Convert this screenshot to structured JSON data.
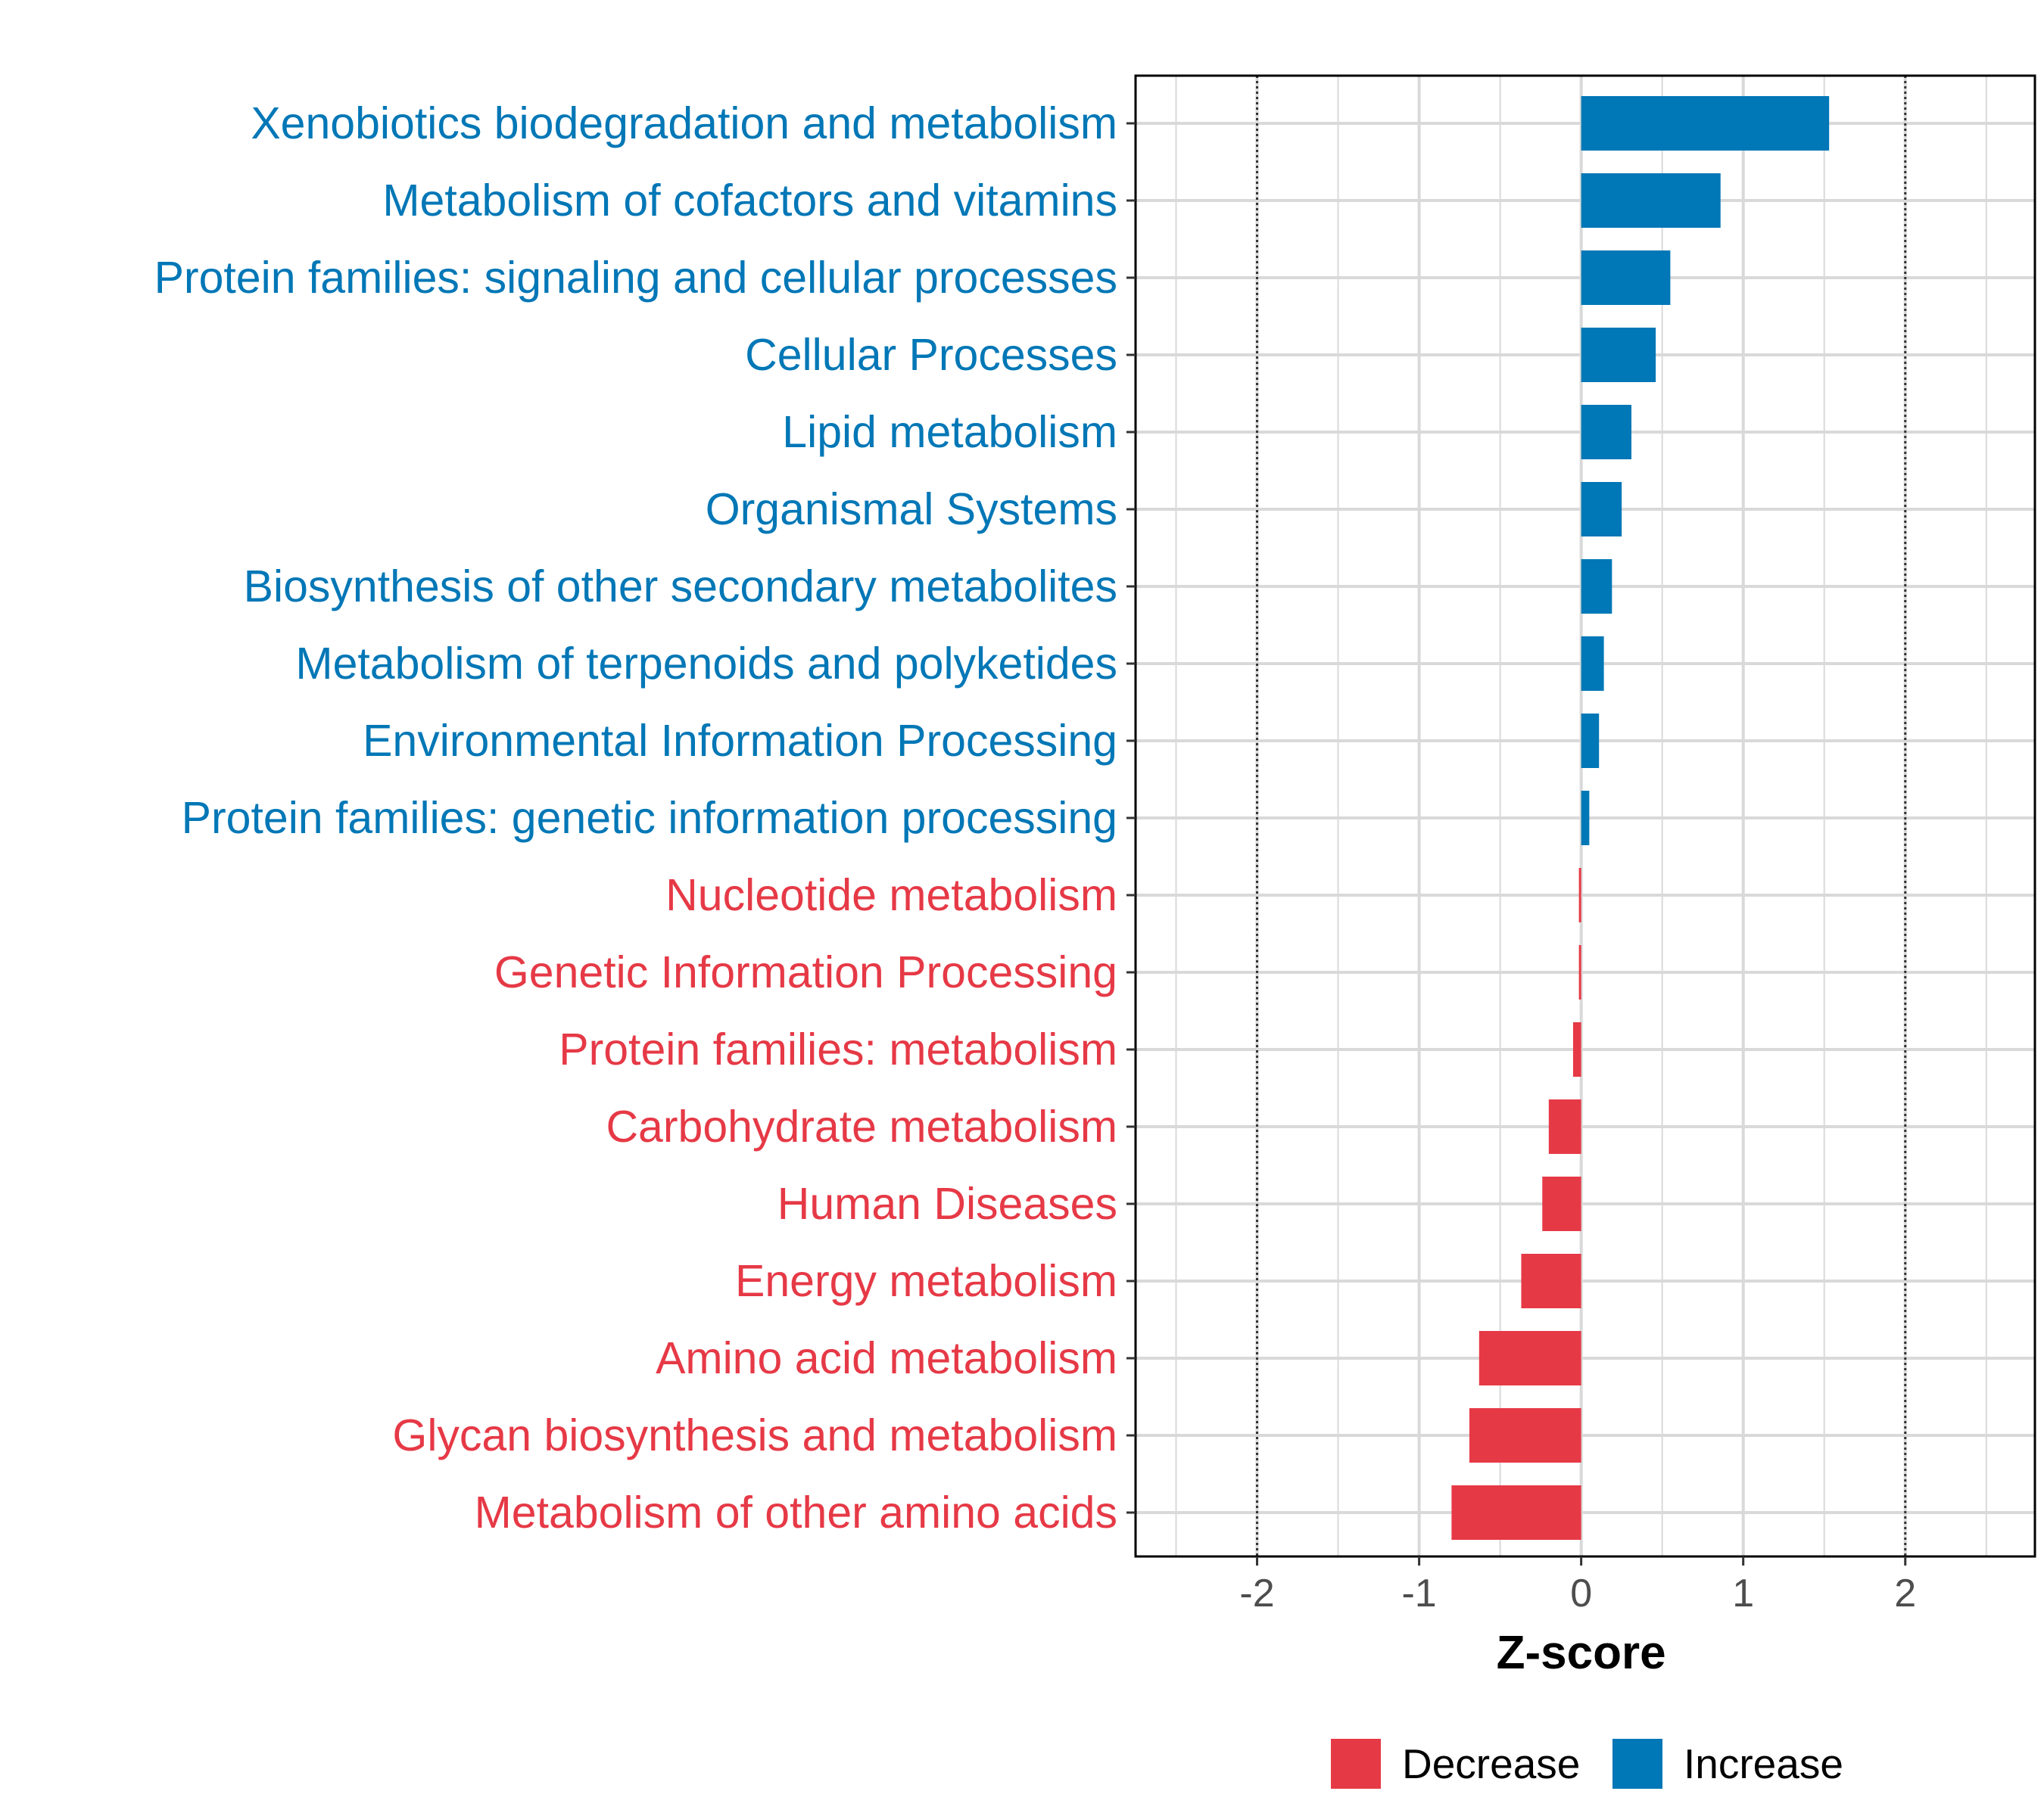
{
  "chart_data": {
    "type": "bar",
    "orientation": "horizontal",
    "title": "",
    "xlabel": "Z-score",
    "ylabel": "",
    "xlim": [
      -2.75,
      2.8
    ],
    "xticks": [
      -2,
      -1,
      0,
      1,
      2
    ],
    "tick_labels": [
      "-2",
      "-1",
      "0",
      "1",
      "2"
    ],
    "reference_lines": [
      -2,
      2
    ],
    "grid": true,
    "categories": [
      "Xenobiotics biodegradation and metabolism",
      "Metabolism of cofactors and vitamins",
      "Protein families: signaling and cellular processes",
      "Cellular Processes",
      "Lipid metabolism",
      "Organismal Systems",
      "Biosynthesis of other secondary metabolites",
      "Metabolism of terpenoids and polyketides",
      "Environmental Information Processing",
      "Protein families: genetic information processing",
      "Nucleotide metabolism",
      "Genetic Information Processing",
      "Protein families: metabolism",
      "Carbohydrate metabolism",
      "Human Diseases",
      "Energy metabolism",
      "Amino acid metabolism",
      "Glycan biosynthesis and metabolism",
      "Metabolism of other amino acids"
    ],
    "values": [
      1.53,
      0.86,
      0.55,
      0.46,
      0.31,
      0.25,
      0.19,
      0.14,
      0.11,
      0.05,
      -0.01,
      -0.01,
      -0.05,
      -0.2,
      -0.24,
      -0.37,
      -0.63,
      -0.69,
      -0.8
    ],
    "groups": [
      "Increase",
      "Increase",
      "Increase",
      "Increase",
      "Increase",
      "Increase",
      "Increase",
      "Increase",
      "Increase",
      "Increase",
      "Decrease",
      "Decrease",
      "Decrease",
      "Decrease",
      "Decrease",
      "Decrease",
      "Decrease",
      "Decrease",
      "Decrease"
    ],
    "legend": {
      "position": "bottom",
      "items": [
        {
          "label": "Decrease",
          "color": "#e63946"
        },
        {
          "label": "Increase",
          "color": "#0077b6"
        }
      ]
    },
    "colors": {
      "Decrease": "#e63946",
      "Increase": "#0077b6"
    }
  }
}
